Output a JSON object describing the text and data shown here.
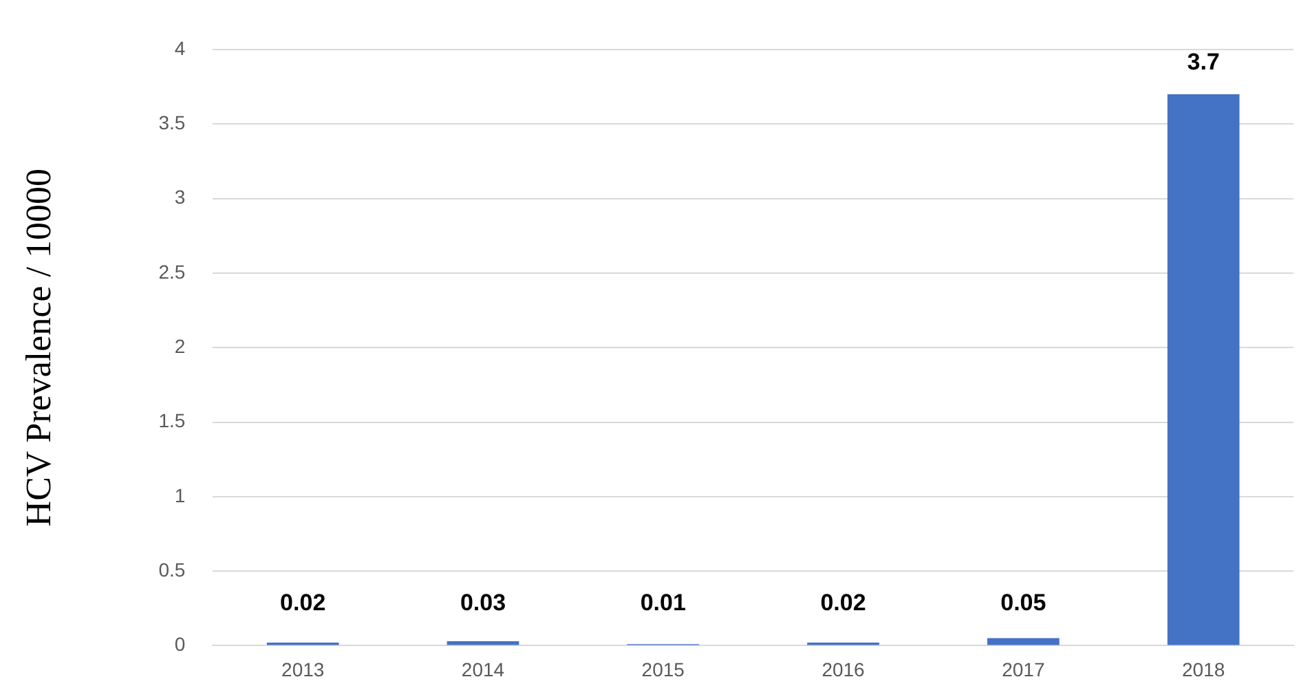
{
  "chart_data": {
    "type": "bar",
    "ylabel": "HCV Prevalence / 10000",
    "categories": [
      "2013",
      "2014",
      "2015",
      "2016",
      "2017",
      "2018"
    ],
    "values": [
      0.02,
      0.03,
      0.01,
      0.02,
      0.05,
      3.7
    ],
    "color": "#4472c4",
    "ylim": [
      0,
      4
    ],
    "yticks": [
      0,
      0.5,
      1,
      1.5,
      2,
      2.5,
      3,
      3.5,
      4
    ],
    "grid": "y",
    "data_labels": true,
    "legend": false
  }
}
